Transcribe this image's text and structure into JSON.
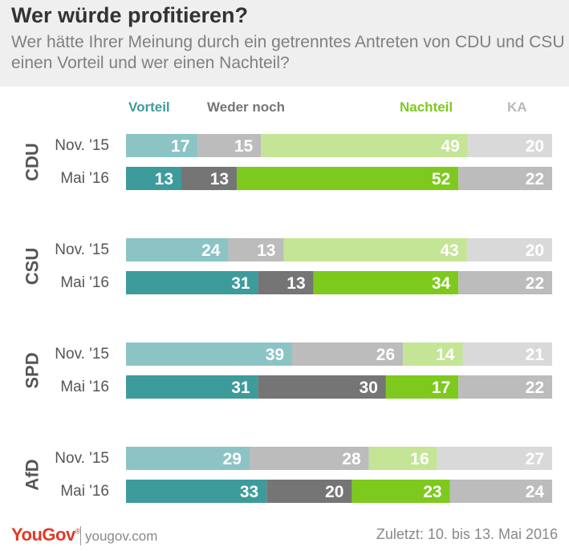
{
  "header": {
    "title": "Wer würde profitieren?",
    "subtitle": "Wer hätte Ihrer Meinung durch ein getrenntes Antreten von CDU und CSU einen Vorteil und wer einen Nachteil?"
  },
  "legend": [
    {
      "label": "Vorteil",
      "color": "#3d9b9b"
    },
    {
      "label": "Weder noch",
      "color": "#757575"
    },
    {
      "label": "Nachteil",
      "color": "#7ec91e"
    },
    {
      "label": "KA",
      "color": "#b8b8b8"
    }
  ],
  "colors": {
    "Nov. '15": [
      "#8cc4c6",
      "#bcbcbc",
      "#c4e595",
      "#d9d9d9"
    ],
    "Mai '16": [
      "#3d9b9b",
      "#757575",
      "#7ec91e",
      "#bcbcbc"
    ]
  },
  "chart_data": {
    "type": "bar",
    "orientation": "horizontal",
    "stacked": true,
    "series_names": [
      "Vorteil",
      "Weder noch",
      "Nachteil",
      "KA"
    ],
    "groups": [
      {
        "party": "CDU",
        "rows": [
          {
            "label": "Nov. '15",
            "values": [
              17,
              15,
              49,
              20
            ]
          },
          {
            "label": "Mai '16",
            "values": [
              13,
              13,
              52,
              22
            ]
          }
        ]
      },
      {
        "party": "CSU",
        "rows": [
          {
            "label": "Nov. '15",
            "values": [
              24,
              13,
              43,
              20
            ]
          },
          {
            "label": "Mai '16",
            "values": [
              31,
              13,
              34,
              22
            ]
          }
        ]
      },
      {
        "party": "SPD",
        "rows": [
          {
            "label": "Nov. '15",
            "values": [
              39,
              26,
              14,
              21
            ]
          },
          {
            "label": "Mai '16",
            "values": [
              31,
              30,
              17,
              22
            ]
          }
        ]
      },
      {
        "party": "AfD",
        "rows": [
          {
            "label": "Nov. '15",
            "values": [
              29,
              28,
              16,
              27
            ]
          },
          {
            "label": "Mai '16",
            "values": [
              33,
              20,
              23,
              24
            ]
          }
        ]
      }
    ]
  },
  "footer": {
    "logo": "YouGov",
    "url": "yougov.com",
    "date": "Zuletzt: 10. bis 13. Mai 2016"
  }
}
